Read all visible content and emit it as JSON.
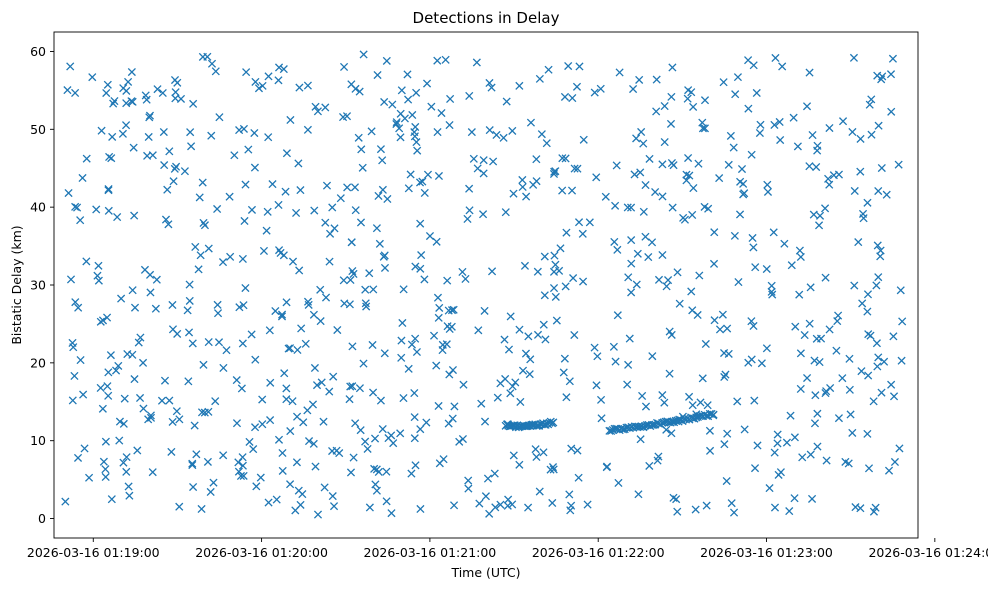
{
  "chart_data": {
    "type": "scatter",
    "title": "Detections in Delay",
    "xlabel": "Time (UTC)",
    "ylabel": "Bistatic Delay (km)",
    "marker": "x",
    "color": "#1f77b4",
    "grid": false,
    "xlim": [
      "2026-03-16 01:18:46",
      "2026-03-16 01:23:54"
    ],
    "ylim": [
      -2.5,
      62.5
    ],
    "xticks": [
      "2026-03-16 01:19:00",
      "2026-03-16 01:20:00",
      "2026-03-16 01:21:00",
      "2026-03-16 01:22:00",
      "2026-03-16 01:23:00",
      "2026-03-16 01:24:00"
    ],
    "yticks": [
      0,
      10,
      20,
      30,
      40,
      50,
      60
    ],
    "start": "2026-03-16 01:18:50",
    "end": "2026-03-16 01:23:49",
    "clutter_count": 900,
    "tracks": [
      {
        "t0": "2026-03-16 01:21:27",
        "t1": "2026-03-16 01:21:44",
        "y0": 12.0,
        "y1": 11.6,
        "y2": 12.4,
        "n": 38
      },
      {
        "t0": "2026-03-16 01:22:04",
        "t1": "2026-03-16 01:22:41",
        "y0": 11.3,
        "y1": 12.1,
        "y2": 13.4,
        "n": 62
      }
    ]
  }
}
